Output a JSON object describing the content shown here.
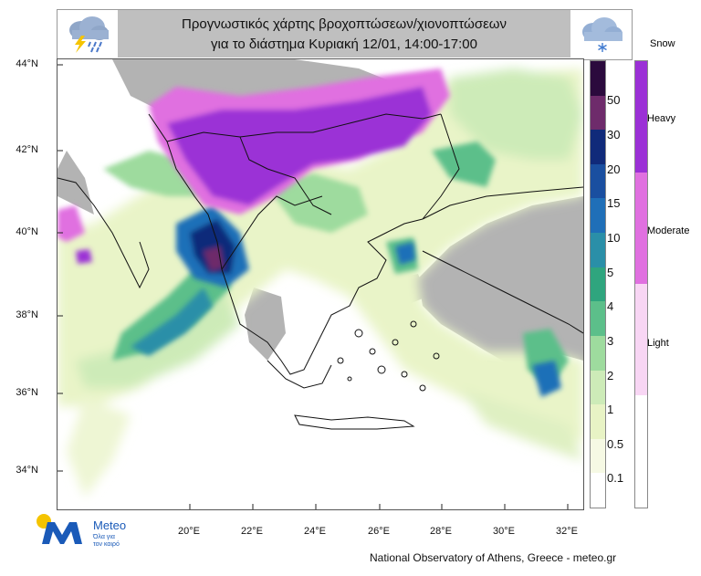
{
  "header": {
    "title_line1": "Προγνωστικός χάρτης βροχοπτώσεων/χιονοπτώσεων",
    "title_line2": "για το διάστημα  Κυριακή 12/01, 14:00-17:00",
    "left_icon": "thunderstorm-rain-cloud-icon",
    "right_icon": "snow-cloud-icon"
  },
  "latitude_labels": [
    "44°N",
    "42°N",
    "40°N",
    "38°N",
    "36°N",
    "34°N"
  ],
  "longitude_labels": [
    "20°E",
    "22°E",
    "24°E",
    "26°E",
    "28°E",
    "30°E",
    "32°E"
  ],
  "rain_scale": {
    "labels": [
      "50",
      "30",
      "20",
      "15",
      "10",
      "5",
      "4",
      "3",
      "2",
      "1",
      "0.5",
      "0.1"
    ],
    "colors": [
      "#2b0a3d",
      "#6e2b6b",
      "#102a7a",
      "#1a4fa0",
      "#1f6fb8",
      "#2a8fa8",
      "#2fa57e",
      "#5cbf8a",
      "#9edb9e",
      "#cdebb8",
      "#e8f3c5",
      "#f6f9e4",
      "#ffffff"
    ]
  },
  "snow_scale": {
    "title": "Snow",
    "labels": [
      "Heavy",
      "Moderate",
      "Light"
    ],
    "colors": [
      "#9b30d6",
      "#e070e0",
      "#f8d6f4",
      "#ffffff"
    ]
  },
  "map_colors": {
    "land_no_precip": "#b3b3b3",
    "sea": "#ffffff",
    "borders": "#111111"
  },
  "logo": {
    "name": "Meteo",
    "slogan_line1": "Όλα για",
    "slogan_line2": "τον καιρό",
    "brand_color": "#1a5ab8",
    "sun_color": "#f5c400"
  },
  "footer": {
    "credit": "National Observatory of Athens, Greece - meteo.gr"
  }
}
